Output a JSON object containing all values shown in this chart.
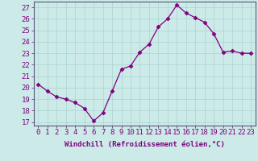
{
  "x": [
    0,
    1,
    2,
    3,
    4,
    5,
    6,
    7,
    8,
    9,
    10,
    11,
    12,
    13,
    14,
    15,
    16,
    17,
    18,
    19,
    20,
    21,
    22,
    23
  ],
  "y": [
    20.3,
    19.7,
    19.2,
    19.0,
    18.7,
    18.2,
    17.1,
    17.8,
    19.7,
    21.6,
    21.9,
    23.1,
    23.8,
    25.3,
    26.0,
    27.2,
    26.5,
    26.1,
    25.7,
    24.7,
    23.1,
    23.2,
    23.0,
    23.0
  ],
  "line_color": "#800080",
  "marker": "D",
  "marker_size": 2.5,
  "bg_color": "#cceae8",
  "grid_color": "#aad4d0",
  "xlabel": "Windchill (Refroidissement éolien,°C)",
  "yticks": [
    17,
    18,
    19,
    20,
    21,
    22,
    23,
    24,
    25,
    26,
    27
  ],
  "xticks": [
    0,
    1,
    2,
    3,
    4,
    5,
    6,
    7,
    8,
    9,
    10,
    11,
    12,
    13,
    14,
    15,
    16,
    17,
    18,
    19,
    20,
    21,
    22,
    23
  ],
  "ylim": [
    16.7,
    27.5
  ],
  "xlim": [
    -0.5,
    23.5
  ],
  "spine_color": "#555577",
  "tick_color": "#800080",
  "label_color": "#800080",
  "tick_fontsize": 6.5,
  "xlabel_fontsize": 6.5
}
